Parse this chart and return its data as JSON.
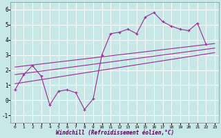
{
  "xlabel": "Windchill (Refroidissement éolien,°C)",
  "xlim": [
    -0.5,
    23.5
  ],
  "ylim": [
    -1.5,
    6.5
  ],
  "yticks": [
    -1,
    0,
    1,
    2,
    3,
    4,
    5,
    6
  ],
  "xticks": [
    0,
    1,
    2,
    3,
    4,
    5,
    6,
    7,
    8,
    9,
    10,
    11,
    12,
    13,
    14,
    15,
    16,
    17,
    18,
    19,
    20,
    21,
    22,
    23
  ],
  "bg_color": "#c8e8e8",
  "grid_color": "#ffffff",
  "line_color": "#993399",
  "data_x": [
    0,
    1,
    2,
    3,
    4,
    5,
    6,
    7,
    8,
    9,
    10,
    11,
    12,
    13,
    14,
    15,
    16,
    17,
    18,
    19,
    20,
    21,
    22
  ],
  "data_y": [
    0.7,
    1.7,
    2.3,
    1.6,
    -0.3,
    0.6,
    0.7,
    0.5,
    -0.6,
    0.1,
    3.0,
    4.4,
    4.5,
    4.7,
    4.4,
    5.5,
    5.8,
    5.2,
    4.9,
    4.7,
    4.6,
    5.1,
    3.7
  ],
  "trend_lines": [
    {
      "x": [
        0,
        23
      ],
      "y": [
        2.2,
        3.75
      ]
    },
    {
      "x": [
        0,
        23
      ],
      "y": [
        1.7,
        3.45
      ]
    },
    {
      "x": [
        0,
        23
      ],
      "y": [
        1.1,
        3.15
      ]
    }
  ]
}
